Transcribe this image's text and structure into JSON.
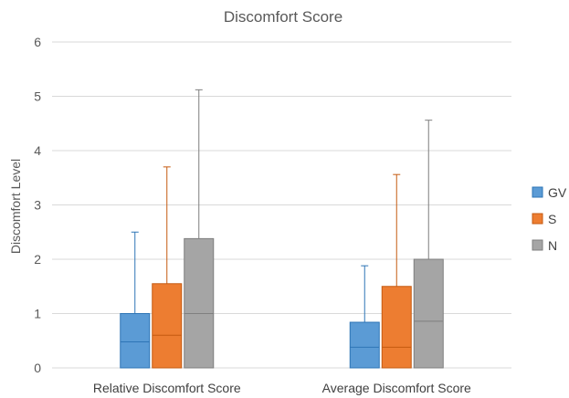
{
  "chart_data": {
    "type": "box",
    "title": "Discomfort Score",
    "ylabel": "Discomfort Level",
    "xlabel": "",
    "ylim": [
      0,
      6
    ],
    "yticks": [
      0,
      1,
      2,
      3,
      4,
      5,
      6
    ],
    "grid": true,
    "legend_position": "right",
    "categories": [
      "Relative Discomfort Score",
      "Average Discomfort Score"
    ],
    "series": [
      {
        "name": "GV",
        "color": "#5B9BD5",
        "stroke": "#2E75B6",
        "boxes": [
          {
            "min": 0,
            "median": 0.48,
            "q3": 1.0,
            "max": 2.5
          },
          {
            "min": 0,
            "median": 0.38,
            "q3": 0.84,
            "max": 1.88
          }
        ]
      },
      {
        "name": "S",
        "color": "#ED7D31",
        "stroke": "#C55A11",
        "boxes": [
          {
            "min": 0,
            "median": 0.6,
            "q3": 1.55,
            "max": 3.7
          },
          {
            "min": 0,
            "median": 0.38,
            "q3": 1.5,
            "max": 3.56
          }
        ]
      },
      {
        "name": "N",
        "color": "#A5A5A5",
        "stroke": "#7F7F7F",
        "boxes": [
          {
            "min": 0,
            "median": 1.0,
            "q3": 2.38,
            "max": 5.12
          },
          {
            "min": 0,
            "median": 0.86,
            "q3": 2.0,
            "max": 4.56
          }
        ]
      }
    ]
  }
}
